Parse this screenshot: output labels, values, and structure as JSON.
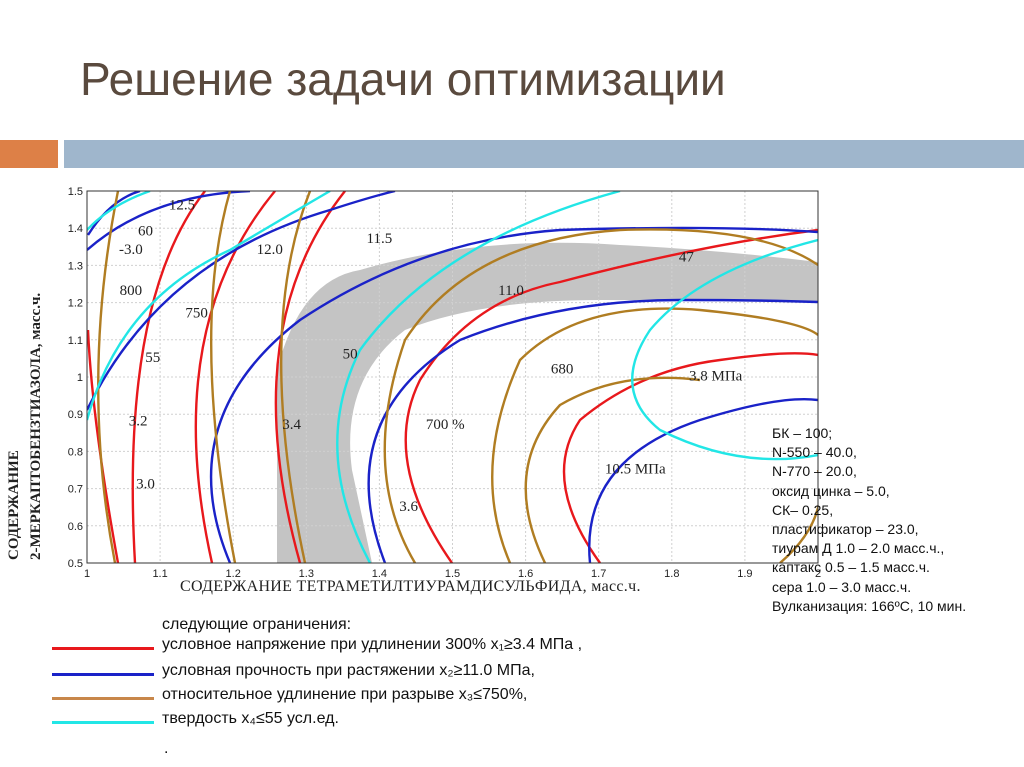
{
  "slide": {
    "title": "Решение задачи оптимизации"
  },
  "colors": {
    "accent_orange": "#dd8047",
    "accent_blue": "#9fb6cc",
    "red": "#e8181c",
    "blue": "#1a22c8",
    "brown": "#b07d22",
    "cyan": "#22e6e6",
    "feasible": "#c4c4c4"
  },
  "chart_data": {
    "type": "contour",
    "xlabel": "СОДЕРЖАНИЕ ТЕТРАМЕТИЛТИУРАМДИСУЛЬФИДА, масс.ч.",
    "ylabel": "2-МЕРКАПТОБЕНЗТИАЗОЛА, масс.ч.",
    "ylabel_top": "СОДЕРЖАНИЕ",
    "xlim": [
      1.0,
      2.0
    ],
    "ylim": [
      0.5,
      1.5
    ],
    "x_ticks": [
      "1",
      "1.1",
      "1.2",
      "1.3",
      "1.4",
      "1.5",
      "1.6",
      "1.7",
      "1.8",
      "1.9",
      "2"
    ],
    "y_ticks": [
      "0.5",
      "0.6",
      "0.7",
      "0.8",
      "0.9",
      "1",
      "1.1",
      "1.2",
      "1.3",
      "1.4",
      "1.5"
    ],
    "grid": true,
    "series": [
      {
        "name": "условное напряжение при удлинении 300%",
        "color": "red",
        "labels": [
          {
            "text": "3.8 МПа",
            "x": 1.86,
            "y": 0.99
          },
          {
            "text": "3.6",
            "x": 1.44,
            "y": 0.64
          },
          {
            "text": "3.4",
            "x": 1.28,
            "y": 0.86
          },
          {
            "text": "3.2",
            "x": 1.07,
            "y": 0.87
          },
          {
            "text": "3.0",
            "x": 1.08,
            "y": 0.7
          },
          {
            "text": "-3.0",
            "x": 1.06,
            "y": 1.33
          }
        ]
      },
      {
        "name": "условная прочность при растяжении",
        "color": "blue",
        "labels": [
          {
            "text": "12.5",
            "x": 1.13,
            "y": 1.45
          },
          {
            "text": "12.0",
            "x": 1.25,
            "y": 1.33
          },
          {
            "text": "11.5",
            "x": 1.4,
            "y": 1.36
          },
          {
            "text": "11.0",
            "x": 1.58,
            "y": 1.22
          },
          {
            "text": "10.5 МПа",
            "x": 1.75,
            "y": 0.74
          }
        ]
      },
      {
        "name": "относительное удлинение при разрыве",
        "color": "brown",
        "labels": [
          {
            "text": "800",
            "x": 1.06,
            "y": 1.22
          },
          {
            "text": "750",
            "x": 1.15,
            "y": 1.16
          },
          {
            "text": "700 %",
            "x": 1.49,
            "y": 0.86
          },
          {
            "text": "680",
            "x": 1.65,
            "y": 1.01
          }
        ]
      },
      {
        "name": "твердость",
        "color": "cyan",
        "labels": [
          {
            "text": "60",
            "x": 1.08,
            "y": 1.38
          },
          {
            "text": "55",
            "x": 1.09,
            "y": 1.04
          },
          {
            "text": "50",
            "x": 1.36,
            "y": 1.05
          },
          {
            "text": "47",
            "x": 1.82,
            "y": 1.31
          }
        ]
      }
    ]
  },
  "recipe": [
    "БК – 100;",
    "N-550 – 40.0,",
    "N-770 – 20.0,",
    "оксид цинка – 5.0,",
    "СК– 0.25,",
    "пластификатор – 23.0,",
    "тиурам Д 1.0 – 2.0 масс.ч.,",
    "каптакс 0.5 – 1.5 масс.ч.",
    "сера 1.0 – 3.0 масс.ч.",
    "Вулканизация: 166ºС, 10 мин."
  ],
  "legend": {
    "heading": "следующие ограничения:",
    "items": [
      {
        "text": "условное напряжение при удлинении 300% x₁≥3.4 МПа ,",
        "color": "#e8181c"
      },
      {
        "text": "условная прочность при растяжении x₂≥11.0 МПа,",
        "color": "#1a22c8"
      },
      {
        "text": "относительное удлинение при разрыве x₃≤750%,",
        "color": "#c8874a"
      },
      {
        "text": "твердость x₄≤55 усл.ед.",
        "color": "#22e6e6"
      }
    ],
    "trailing": "."
  }
}
